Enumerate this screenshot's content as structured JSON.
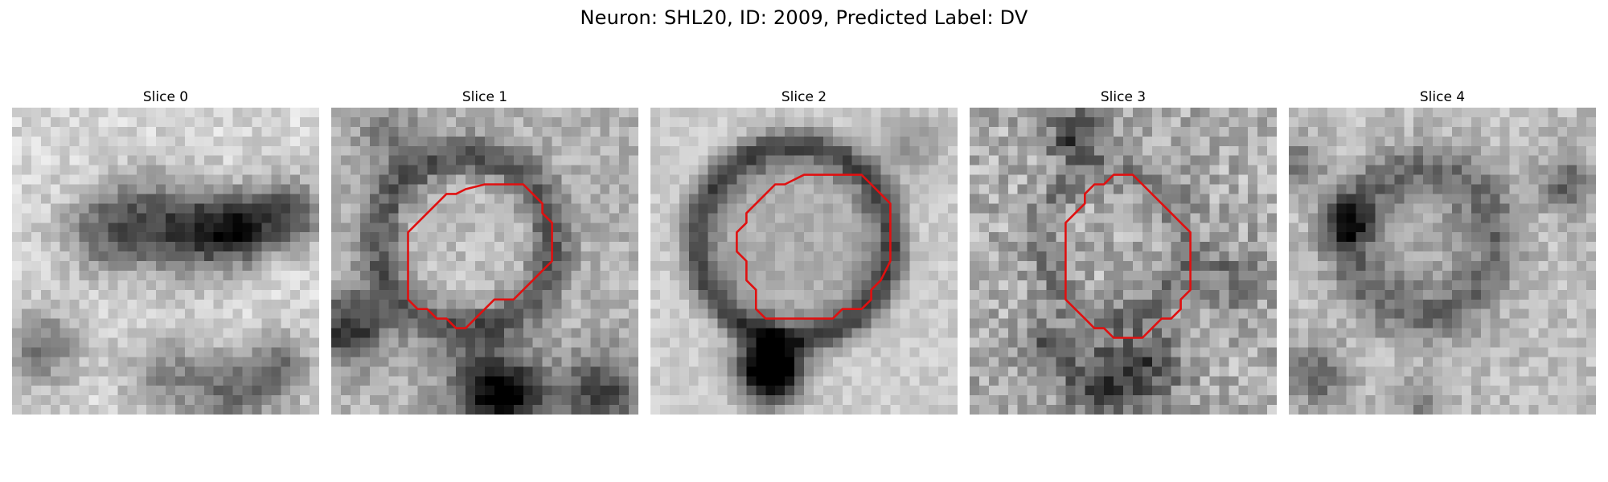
{
  "figure": {
    "title": "Neuron: SHL20, ID: 2009, Predicted Label: DV",
    "contour_color": "#e01010"
  },
  "panels": [
    {
      "title": "Slice 0",
      "has_contour": false
    },
    {
      "title": "Slice 1",
      "has_contour": true
    },
    {
      "title": "Slice 2",
      "has_contour": true
    },
    {
      "title": "Slice 3",
      "has_contour": true
    },
    {
      "title": "Slice 4",
      "has_contour": false
    }
  ]
}
